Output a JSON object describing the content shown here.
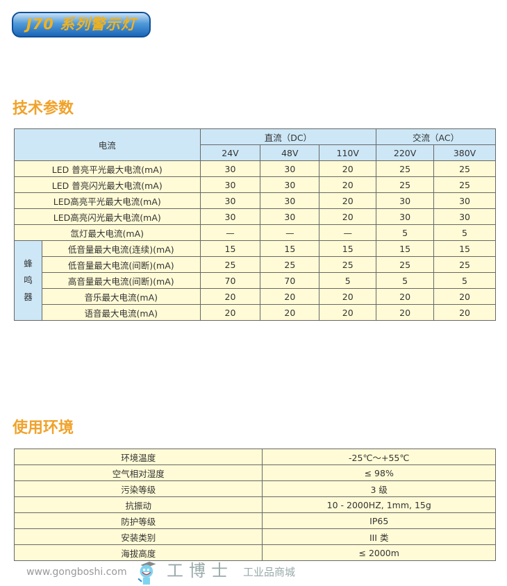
{
  "title": "J70 系列警示灯",
  "tech": {
    "heading": "技术参数",
    "corner": "电流",
    "dc": "直流（DC）",
    "ac": "交流（AC）",
    "voltages": [
      "24V",
      "48V",
      "110V",
      "220V",
      "380V"
    ],
    "buzzer_group": "蜂鸣器",
    "rows": [
      {
        "label": "LED 普亮平光最大电流(mA)",
        "values": [
          "30",
          "30",
          "20",
          "25",
          "25"
        ]
      },
      {
        "label": "LED 普亮闪光最大电流(mA)",
        "values": [
          "30",
          "30",
          "20",
          "25",
          "25"
        ]
      },
      {
        "label": "LED高亮平光最大电流(mA)",
        "values": [
          "30",
          "30",
          "20",
          "30",
          "30"
        ]
      },
      {
        "label": "LED高亮闪光最大电流(mA)",
        "values": [
          "30",
          "30",
          "20",
          "30",
          "30"
        ]
      },
      {
        "label": "氙灯最大电流(mA)",
        "values": [
          "—",
          "—",
          "—",
          "5",
          "5"
        ]
      }
    ],
    "buzzer_rows": [
      {
        "label": "低音量最大电流(连续)(mA)",
        "values": [
          "15",
          "15",
          "15",
          "15",
          "15"
        ]
      },
      {
        "label": "低音量最大电流(间断)(mA)",
        "values": [
          "25",
          "25",
          "25",
          "25",
          "25"
        ]
      },
      {
        "label": "高音量最大电流(间断)(mA)",
        "values": [
          "70",
          "70",
          "5",
          "5",
          "5"
        ]
      },
      {
        "label": "音乐最大电流(mA)",
        "values": [
          "20",
          "20",
          "20",
          "20",
          "20"
        ]
      },
      {
        "label": "语音最大电流(mA)",
        "values": [
          "20",
          "20",
          "20",
          "20",
          "20"
        ]
      }
    ]
  },
  "env": {
    "heading": "使用环境",
    "rows": [
      {
        "label": "环境温度",
        "value": "-25℃～+55℃"
      },
      {
        "label": "空气相对湿度",
        "value": "≤ 98%"
      },
      {
        "label": "污染等级",
        "value": "3 级"
      },
      {
        "label": "抗振动",
        "value": "10 - 2000HZ, 1mm, 15g"
      },
      {
        "label": "防护等级",
        "value": "IP65"
      },
      {
        "label": "安装类别",
        "value": "III 类"
      },
      {
        "label": "海拔高度",
        "value": "≤ 2000m"
      }
    ]
  },
  "watermark": {
    "brand": "工博士",
    "sub": "工业品商城",
    "url": "www.gongboshi.com"
  }
}
